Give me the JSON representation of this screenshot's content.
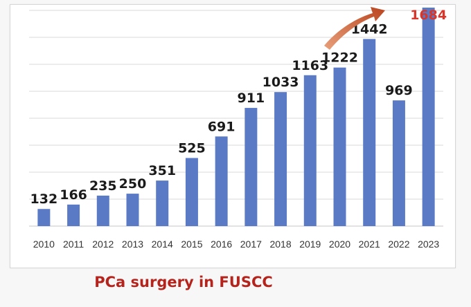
{
  "caption": "PCa surgery in FUSCC",
  "colors": {
    "bar": "#5b7ac6",
    "grid": "#d9d9d9",
    "label": "#1a1a1a",
    "highlight_label": "#d9362b",
    "arrow": "#c4552a",
    "caption": "#b5241c"
  },
  "annotation": {
    "type": "upward-trend-arrow",
    "near": "2021"
  },
  "chart_data": {
    "type": "bar",
    "categories": [
      "2010",
      "2011",
      "2012",
      "2013",
      "2014",
      "2015",
      "2016",
      "2017",
      "2018",
      "2019",
      "2020",
      "2021",
      "2022",
      "2023"
    ],
    "values": [
      132,
      166,
      235,
      250,
      351,
      525,
      691,
      911,
      1033,
      1163,
      1222,
      1442,
      969,
      1684
    ],
    "value_labels": [
      "132",
      "166",
      "235",
      "250",
      "351",
      "525",
      "691",
      "911",
      "1033",
      "1163",
      "1222",
      "1442",
      "969",
      "1684"
    ],
    "highlight_index": 13,
    "ylim": [
      0,
      1700
    ],
    "grid": true,
    "y_ticks_visible": false,
    "legend": "none"
  }
}
